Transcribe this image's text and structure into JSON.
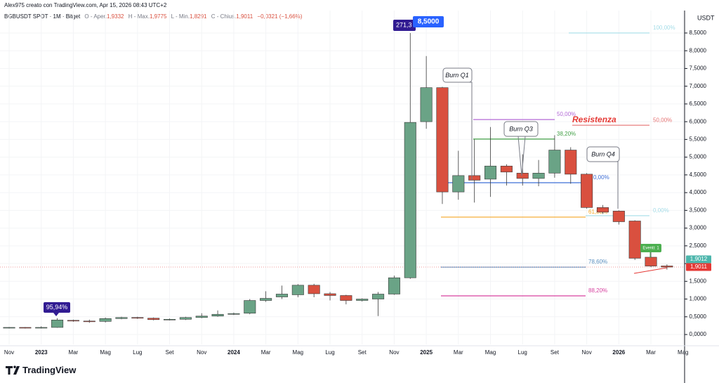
{
  "header": {
    "author": "Alex975 creato con TradingView.com, Apr 15, 2026 08:43 UTC+2",
    "symbol": "BGBUSDT SPOT · 1M · Bitget",
    "ohlc": [
      {
        "label": "O - Aper.",
        "value": "1,9332"
      },
      {
        "label": "H - Max.",
        "value": "1,9775"
      },
      {
        "label": "L - Min.",
        "value": "1,8291"
      },
      {
        "label": "C - Chius.",
        "value": "1,9011"
      }
    ],
    "change": "−0,0321 (−1,66%)"
  },
  "brand": "TradingView",
  "chart_data": {
    "type": "candlestick",
    "y_axis_title": "USDT",
    "categories": [
      "Nov",
      null,
      "2023",
      null,
      "Mar",
      null,
      "Mag",
      null,
      "Lug",
      null,
      "Set",
      null,
      "Nov",
      null,
      "2024",
      null,
      "Mar",
      null,
      "Mag",
      null,
      "Lug",
      null,
      "Set",
      null,
      "Nov",
      null,
      "2025",
      null,
      "Mar",
      null,
      "Mag",
      null,
      "Lug",
      null,
      "Set",
      null,
      "Nov",
      null,
      "2026",
      null,
      "Mar",
      null,
      "Mag"
    ],
    "open": [
      0.19,
      0.2,
      0.18,
      0.2,
      0.4,
      0.38,
      0.37,
      0.45,
      0.48,
      0.46,
      0.42,
      0.43,
      0.48,
      0.52,
      0.57,
      0.6,
      0.96,
      1.06,
      1.12,
      1.39,
      1.15,
      1.1,
      0.96,
      1.0,
      1.14,
      1.6,
      6.0,
      6.96,
      4.02,
      4.48,
      4.38,
      4.75,
      4.55,
      4.4,
      4.55,
      5.2,
      4.52,
      3.58,
      3.48,
      3.2,
      2.18,
      1.9332,
      null
    ],
    "high": [
      0.21,
      0.21,
      0.23,
      0.46,
      0.42,
      0.42,
      0.48,
      0.5,
      0.5,
      0.48,
      0.45,
      0.5,
      0.6,
      0.68,
      0.62,
      1.0,
      1.22,
      1.38,
      1.42,
      1.43,
      1.2,
      1.12,
      1.02,
      1.2,
      1.66,
      8.5,
      7.85,
      6.98,
      5.18,
      5.5,
      5.85,
      4.8,
      5.08,
      4.92,
      5.62,
      5.28,
      4.55,
      3.65,
      3.5,
      3.22,
      2.35,
      1.9775,
      null
    ],
    "low": [
      0.17,
      0.17,
      0.17,
      0.19,
      0.36,
      0.33,
      0.34,
      0.43,
      0.44,
      0.4,
      0.4,
      0.41,
      0.46,
      0.5,
      0.55,
      0.57,
      0.92,
      1.0,
      1.05,
      1.05,
      0.96,
      0.85,
      0.93,
      0.52,
      1.12,
      1.57,
      5.8,
      3.68,
      3.8,
      3.72,
      3.88,
      4.2,
      4.2,
      4.18,
      4.42,
      4.25,
      3.55,
      3.4,
      3.1,
      2.1,
      1.9,
      1.8291,
      null
    ],
    "close": [
      0.2,
      0.18,
      0.2,
      0.41,
      0.38,
      0.37,
      0.45,
      0.48,
      0.46,
      0.42,
      0.43,
      0.48,
      0.52,
      0.57,
      0.59,
      0.96,
      1.02,
      1.14,
      1.39,
      1.15,
      1.1,
      0.96,
      1.0,
      1.14,
      1.6,
      5.98,
      6.96,
      4.02,
      4.48,
      4.35,
      4.75,
      4.58,
      4.4,
      4.55,
      5.2,
      4.52,
      3.58,
      3.45,
      3.18,
      2.15,
      1.93,
      1.9011,
      null
    ],
    "up_color": "#6aa386",
    "down_color": "#d9503f",
    "ylim": [
      -0.277,
      9.133
    ],
    "yticks": [
      {
        "value": 0,
        "label": "0,0000"
      },
      {
        "value": 0.5,
        "label": "0,5000"
      },
      {
        "value": 1,
        "label": "1,0000"
      },
      {
        "value": 1.5,
        "label": "1,5000"
      },
      {
        "value": 2,
        "label": "2,0000"
      },
      {
        "value": 2.5,
        "label": "2,5000"
      },
      {
        "value": 3,
        "label": "3,0000"
      },
      {
        "value": 3.5,
        "label": "3,5000"
      },
      {
        "value": 4,
        "label": "4,0000"
      },
      {
        "value": 4.5,
        "label": "4,5000"
      },
      {
        "value": 5,
        "label": "5,0000"
      },
      {
        "value": 5.5,
        "label": "5,5000"
      },
      {
        "value": 6,
        "label": "6,0000"
      },
      {
        "value": 6.5,
        "label": "6,5000"
      },
      {
        "value": 7,
        "label": "7,0000"
      },
      {
        "value": 7.5,
        "label": "7,5000"
      },
      {
        "value": 8,
        "label": "8,0000"
      },
      {
        "value": 8.5,
        "label": "8,5000"
      }
    ],
    "grid": true,
    "levels": [
      {
        "label": "100,00%",
        "value": 8.5,
        "color": "#a5dde8"
      },
      {
        "label": "50,00%",
        "value": 5.9,
        "color": "#e57373"
      },
      {
        "label": "50,00%",
        "value": 6.06,
        "color": "#b36ad6"
      },
      {
        "label": "38,20%",
        "value": 5.51,
        "color": "#43a047"
      },
      {
        "label": "0,00%",
        "value": 4.28,
        "color": "#3f6fd6"
      },
      {
        "label": "61,80%",
        "value": 3.31,
        "color": "#f5a623"
      },
      {
        "label": "0,00%",
        "value": 3.35,
        "color": "#a5dde8"
      },
      {
        "label": "78,60%",
        "value": 1.9,
        "color": "#5a8fbf"
      },
      {
        "label": "88,20%",
        "value": 1.09,
        "color": "#d6409f"
      }
    ],
    "price_labels": [
      {
        "value": 1.9012,
        "label": "1,9012",
        "color": "#4db6ac"
      },
      {
        "value": 1.9011,
        "label": "1,9011",
        "color": "#e53935"
      }
    ],
    "annotations": {
      "resistance": "Resistenza",
      "burn_q1": "Burn Q1",
      "burn_q3": "Burn Q3",
      "burn_q4": "Burn Q4",
      "event": "Eventi: 1",
      "high_label": "8,5000",
      "change_label": "271,3",
      "gain_label": "95,94%"
    }
  }
}
